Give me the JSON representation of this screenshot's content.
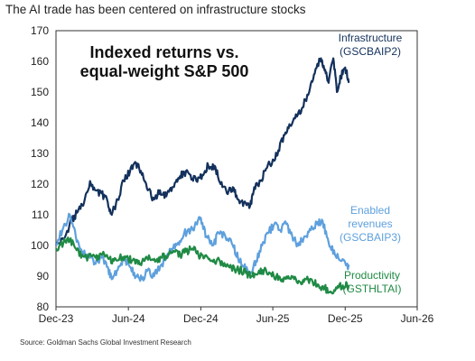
{
  "headline": "The AI trade has been centered on infrastructure stocks",
  "source": "Source: Goldman Sachs Global Investment Research",
  "colors": {
    "infrastructure": "#13315c",
    "enabled": "#5ea0dd",
    "productivity": "#1f8a44",
    "frame": "#333333"
  },
  "chart_data": {
    "type": "line",
    "title_lines": [
      "Indexed returns vs.",
      "equal-weight S&P 500"
    ],
    "ylim": [
      80,
      170
    ],
    "yticks": [
      80,
      90,
      100,
      110,
      120,
      130,
      140,
      150,
      160,
      170
    ],
    "xlim": [
      "2023-12-01",
      "2026-06-01"
    ],
    "xticks": [
      {
        "label": "Dec-23",
        "date": "2023-12-01"
      },
      {
        "label": "Jun-24",
        "date": "2024-06-01"
      },
      {
        "label": "Dec-24",
        "date": "2024-12-01"
      },
      {
        "label": "Jun-25",
        "date": "2025-06-01"
      },
      {
        "label": "Dec-25",
        "date": "2025-12-01"
      },
      {
        "label": "Jun-26",
        "date": "2026-06-01"
      }
    ],
    "series": [
      {
        "name": "Infrastructure",
        "code": "(GSCBAIP2)",
        "color_key": "infrastructure",
        "points": [
          [
            "2023-12-01",
            100
          ],
          [
            "2023-12-20",
            102
          ],
          [
            "2024-01-10",
            108
          ],
          [
            "2024-01-25",
            111
          ],
          [
            "2024-02-10",
            114
          ],
          [
            "2024-02-25",
            121
          ],
          [
            "2024-03-10",
            118
          ],
          [
            "2024-03-25",
            117
          ],
          [
            "2024-04-10",
            114
          ],
          [
            "2024-04-20",
            110
          ],
          [
            "2024-05-05",
            115
          ],
          [
            "2024-05-20",
            121
          ],
          [
            "2024-06-05",
            124
          ],
          [
            "2024-06-20",
            127
          ],
          [
            "2024-07-05",
            123
          ],
          [
            "2024-07-20",
            118
          ],
          [
            "2024-08-05",
            115
          ],
          [
            "2024-08-20",
            118
          ],
          [
            "2024-09-05",
            116
          ],
          [
            "2024-09-20",
            119
          ],
          [
            "2024-10-05",
            122
          ],
          [
            "2024-10-20",
            124
          ],
          [
            "2024-11-05",
            123
          ],
          [
            "2024-11-20",
            121
          ],
          [
            "2024-12-05",
            123
          ],
          [
            "2024-12-20",
            126
          ],
          [
            "2025-01-05",
            126
          ],
          [
            "2025-01-20",
            120
          ],
          [
            "2025-02-05",
            117
          ],
          [
            "2025-02-20",
            119
          ],
          [
            "2025-03-05",
            115
          ],
          [
            "2025-03-20",
            114
          ],
          [
            "2025-04-05",
            113
          ],
          [
            "2025-04-15",
            119
          ],
          [
            "2025-05-01",
            121
          ],
          [
            "2025-05-15",
            125
          ],
          [
            "2025-06-01",
            128
          ],
          [
            "2025-06-15",
            131
          ],
          [
            "2025-07-01",
            136
          ],
          [
            "2025-07-15",
            139
          ],
          [
            "2025-08-01",
            142
          ],
          [
            "2025-08-15",
            145
          ],
          [
            "2025-09-01",
            150
          ],
          [
            "2025-09-15",
            156
          ],
          [
            "2025-10-01",
            161
          ],
          [
            "2025-10-10",
            157
          ],
          [
            "2025-10-20",
            153
          ],
          [
            "2025-11-01",
            161
          ],
          [
            "2025-11-10",
            150
          ],
          [
            "2025-11-20",
            155
          ],
          [
            "2025-12-01",
            158
          ],
          [
            "2025-12-10",
            153
          ]
        ]
      },
      {
        "name": "Enabled revenues",
        "code": "(GSCBAIP3)",
        "color_key": "enabled",
        "points": [
          [
            "2023-12-01",
            100
          ],
          [
            "2023-12-20",
            106
          ],
          [
            "2024-01-05",
            110
          ],
          [
            "2024-01-20",
            103
          ],
          [
            "2024-02-05",
            98
          ],
          [
            "2024-02-25",
            96
          ],
          [
            "2024-03-10",
            94
          ],
          [
            "2024-03-25",
            96
          ],
          [
            "2024-04-10",
            93
          ],
          [
            "2024-04-20",
            89
          ],
          [
            "2024-05-05",
            92
          ],
          [
            "2024-05-20",
            96
          ],
          [
            "2024-06-05",
            93
          ],
          [
            "2024-06-20",
            90
          ],
          [
            "2024-07-05",
            89
          ],
          [
            "2024-07-20",
            92
          ],
          [
            "2024-08-05",
            90
          ],
          [
            "2024-08-20",
            93
          ],
          [
            "2024-09-05",
            96
          ],
          [
            "2024-09-20",
            99
          ],
          [
            "2024-10-05",
            101
          ],
          [
            "2024-10-20",
            104
          ],
          [
            "2024-11-05",
            105
          ],
          [
            "2024-11-20",
            107
          ],
          [
            "2024-12-01",
            109
          ],
          [
            "2024-12-15",
            103
          ],
          [
            "2025-01-01",
            100
          ],
          [
            "2025-01-15",
            104
          ],
          [
            "2025-02-01",
            103
          ],
          [
            "2025-02-20",
            100
          ],
          [
            "2025-03-05",
            96
          ],
          [
            "2025-03-20",
            93
          ],
          [
            "2025-04-05",
            91
          ],
          [
            "2025-04-20",
            95
          ],
          [
            "2025-05-05",
            100
          ],
          [
            "2025-05-20",
            104
          ],
          [
            "2025-06-05",
            107
          ],
          [
            "2025-06-20",
            105
          ],
          [
            "2025-07-05",
            107
          ],
          [
            "2025-07-20",
            103
          ],
          [
            "2025-08-05",
            100
          ],
          [
            "2025-08-20",
            103
          ],
          [
            "2025-09-05",
            105
          ],
          [
            "2025-09-20",
            107
          ],
          [
            "2025-10-05",
            108
          ],
          [
            "2025-10-20",
            101
          ],
          [
            "2025-11-05",
            97
          ],
          [
            "2025-11-20",
            95
          ],
          [
            "2025-12-05",
            94
          ],
          [
            "2025-12-10",
            93
          ]
        ]
      },
      {
        "name": "Productivity",
        "code": "(GSTHLTAI)",
        "color_key": "productivity",
        "points": [
          [
            "2023-12-01",
            99
          ],
          [
            "2023-12-20",
            101
          ],
          [
            "2024-01-05",
            102
          ],
          [
            "2024-01-20",
            99
          ],
          [
            "2024-02-05",
            97
          ],
          [
            "2024-02-20",
            96
          ],
          [
            "2024-03-10",
            96
          ],
          [
            "2024-03-25",
            97
          ],
          [
            "2024-04-10",
            96
          ],
          [
            "2024-04-25",
            95
          ],
          [
            "2024-05-10",
            96
          ],
          [
            "2024-05-25",
            96
          ],
          [
            "2024-06-10",
            95
          ],
          [
            "2024-06-25",
            94
          ],
          [
            "2024-07-10",
            95
          ],
          [
            "2024-07-25",
            96
          ],
          [
            "2024-08-10",
            95
          ],
          [
            "2024-08-25",
            96
          ],
          [
            "2024-09-10",
            97
          ],
          [
            "2024-09-25",
            98
          ],
          [
            "2024-10-10",
            97
          ],
          [
            "2024-10-25",
            98
          ],
          [
            "2024-11-10",
            99
          ],
          [
            "2024-11-25",
            97
          ],
          [
            "2024-12-10",
            96
          ],
          [
            "2024-12-25",
            95
          ],
          [
            "2025-01-10",
            95
          ],
          [
            "2025-01-25",
            94
          ],
          [
            "2025-02-10",
            93
          ],
          [
            "2025-02-25",
            92
          ],
          [
            "2025-03-10",
            92
          ],
          [
            "2025-03-25",
            91
          ],
          [
            "2025-04-10",
            90
          ],
          [
            "2025-04-25",
            91
          ],
          [
            "2025-05-10",
            92
          ],
          [
            "2025-05-25",
            91
          ],
          [
            "2025-06-10",
            90
          ],
          [
            "2025-06-25",
            89
          ],
          [
            "2025-07-10",
            90
          ],
          [
            "2025-07-25",
            89
          ],
          [
            "2025-08-10",
            88
          ],
          [
            "2025-08-25",
            89
          ],
          [
            "2025-09-10",
            88
          ],
          [
            "2025-09-25",
            87
          ],
          [
            "2025-10-10",
            86
          ],
          [
            "2025-10-25",
            85
          ],
          [
            "2025-11-10",
            86
          ],
          [
            "2025-11-25",
            87
          ],
          [
            "2025-12-10",
            87
          ]
        ]
      }
    ]
  }
}
